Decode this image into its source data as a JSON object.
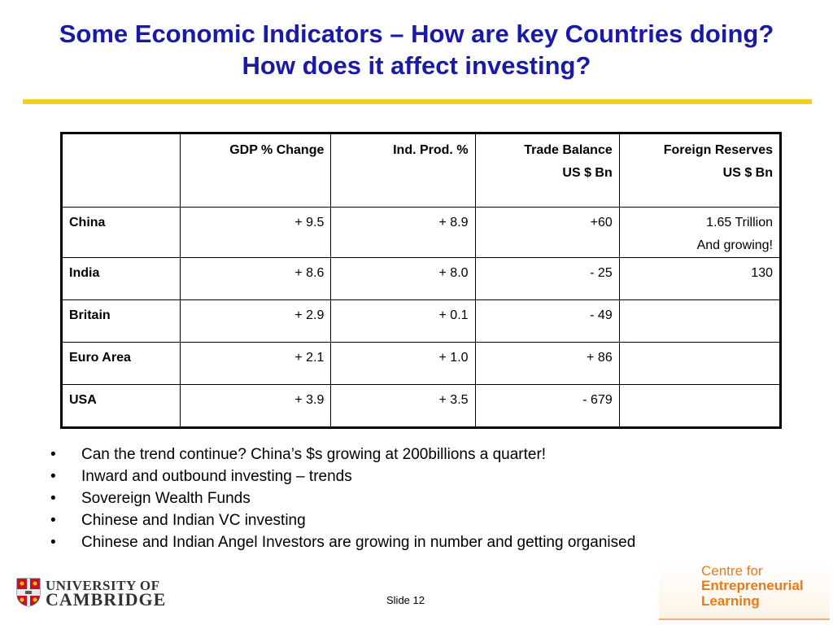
{
  "slide": {
    "title": "Some Economic Indicators – How are key Countries doing? How does it affect investing?",
    "slide_number": "Slide 12"
  },
  "table": {
    "headers": [
      "",
      "GDP % Change",
      "Ind. Prod. %",
      [
        "Trade Balance",
        "US $ Bn"
      ],
      [
        "Foreign Reserves",
        "US $ Bn"
      ]
    ],
    "rows": [
      {
        "country": "China",
        "gdp": "+ 9.5",
        "ind_prod": "+ 8.9",
        "trade_balance": "+60",
        "reserves": [
          "1.65 Trillion",
          "And  growing!"
        ]
      },
      {
        "country": "India",
        "gdp": "+ 8.6",
        "ind_prod": "+ 8.0",
        "trade_balance": "- 25",
        "reserves": [
          "130"
        ]
      },
      {
        "country": "Britain",
        "gdp": "+ 2.9",
        "ind_prod": "+ 0.1",
        "trade_balance": "- 49",
        "reserves": [
          ""
        ]
      },
      {
        "country": "Euro Area",
        "gdp": "+ 2.1",
        "ind_prod": "+ 1.0",
        "trade_balance": "+ 86",
        "reserves": [
          ""
        ]
      },
      {
        "country": "USA",
        "gdp": "+ 3.9",
        "ind_prod": "+ 3.5",
        "trade_balance": "- 679",
        "reserves": [
          ""
        ]
      }
    ]
  },
  "bullets": {
    "marker": "•",
    "items": [
      "Can the trend continue? China’s $s growing at 200billions a quarter!",
      "Inward and outbound investing – trends",
      "Sovereign Wealth Funds",
      "Chinese and Indian VC investing",
      "Chinese and Indian Angel Investors are growing in number and getting organised"
    ]
  },
  "logos": {
    "cambridge": {
      "line1": "UNIVERSITY OF",
      "line2": "CAMBRIDGE"
    },
    "cfel": {
      "line1": "Centre for",
      "line2": "Entrepreneurial",
      "line3": "Learning"
    }
  },
  "colors": {
    "title": "#1a1aa8",
    "rule": "#f5cf1a",
    "cfel_orange": "#e87a1c"
  }
}
